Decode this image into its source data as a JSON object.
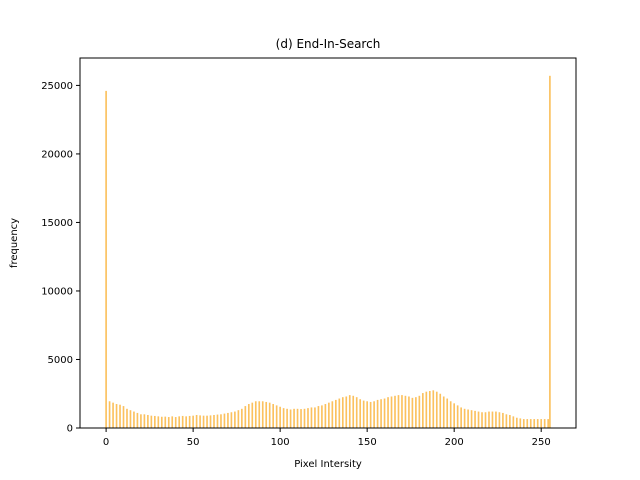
{
  "chart_data": {
    "type": "bar",
    "title": "(d) End-In-Search",
    "xlabel": "Pixel Intersity",
    "ylabel": "frequency",
    "xlim": [
      -15,
      270
    ],
    "ylim": [
      0,
      27000
    ],
    "xticks": [
      0,
      50,
      100,
      150,
      200,
      250
    ],
    "yticks": [
      0,
      5000,
      10000,
      15000,
      20000,
      25000
    ],
    "bar_color": "#fbc15e",
    "grid": false,
    "x": [
      0,
      2,
      4,
      6,
      8,
      10,
      12,
      14,
      16,
      18,
      20,
      22,
      24,
      26,
      28,
      30,
      32,
      34,
      36,
      38,
      40,
      42,
      44,
      46,
      48,
      50,
      52,
      54,
      56,
      58,
      60,
      62,
      64,
      66,
      68,
      70,
      72,
      74,
      76,
      78,
      80,
      82,
      84,
      86,
      88,
      90,
      92,
      94,
      96,
      98,
      100,
      102,
      104,
      106,
      108,
      110,
      112,
      114,
      116,
      118,
      120,
      122,
      124,
      126,
      128,
      130,
      132,
      134,
      136,
      138,
      140,
      142,
      144,
      146,
      148,
      150,
      152,
      154,
      156,
      158,
      160,
      162,
      164,
      166,
      168,
      170,
      172,
      174,
      176,
      178,
      180,
      182,
      184,
      186,
      188,
      190,
      192,
      194,
      196,
      198,
      200,
      202,
      204,
      206,
      208,
      210,
      212,
      214,
      216,
      218,
      220,
      222,
      224,
      226,
      228,
      230,
      232,
      234,
      236,
      238,
      240,
      242,
      244,
      246,
      248,
      250,
      252,
      254,
      255
    ],
    "values": [
      24600,
      1950,
      1850,
      1750,
      1700,
      1600,
      1400,
      1300,
      1200,
      1100,
      1000,
      1000,
      950,
      900,
      880,
      850,
      820,
      830,
      800,
      850,
      800,
      850,
      880,
      850,
      880,
      900,
      950,
      920,
      900,
      900,
      920,
      950,
      980,
      1000,
      1050,
      1100,
      1150,
      1200,
      1300,
      1400,
      1600,
      1750,
      1850,
      1950,
      1950,
      1950,
      1900,
      1850,
      1750,
      1650,
      1550,
      1450,
      1400,
      1350,
      1400,
      1400,
      1380,
      1400,
      1450,
      1500,
      1500,
      1600,
      1650,
      1750,
      1850,
      1950,
      2050,
      2150,
      2250,
      2300,
      2400,
      2350,
      2250,
      2100,
      2000,
      1950,
      1900,
      1950,
      2050,
      2100,
      2150,
      2250,
      2300,
      2350,
      2400,
      2400,
      2350,
      2300,
      2200,
      2250,
      2350,
      2550,
      2650,
      2700,
      2750,
      2650,
      2500,
      2300,
      2150,
      1950,
      1800,
      1650,
      1500,
      1400,
      1350,
      1300,
      1250,
      1200,
      1150,
      1150,
      1200,
      1200,
      1200,
      1150,
      1100,
      1000,
      950,
      850,
      750,
      700,
      650,
      650,
      650,
      650,
      650,
      650,
      650,
      650,
      25700
    ]
  }
}
